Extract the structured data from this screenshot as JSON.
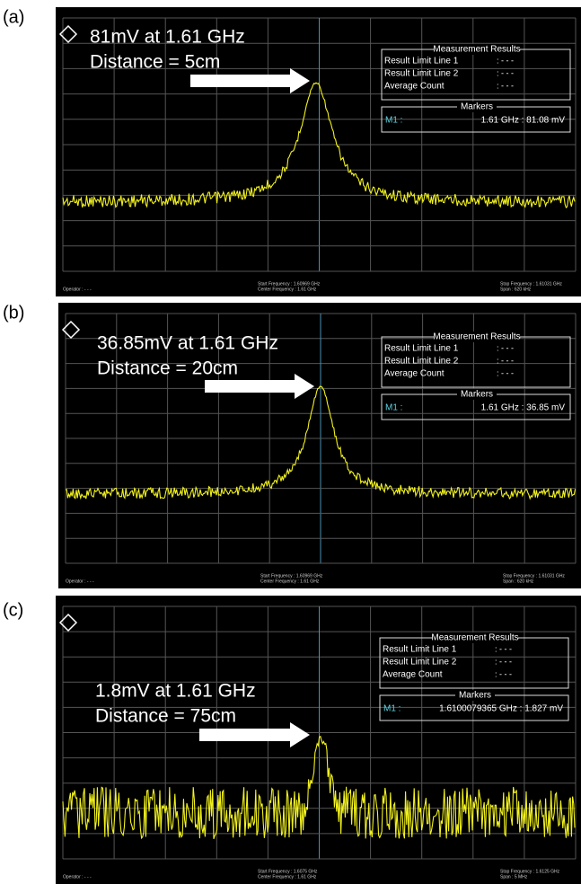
{
  "panels": [
    {
      "label": "(a)",
      "annotation": [
        "81mV at 1.61 GHz",
        "Distance = 5cm"
      ],
      "results": {
        "title": "Measurement Results",
        "rows": [
          [
            "Result Limit Line 1",
            ": - - -"
          ],
          [
            "Result Limit Line 2",
            ": - - -"
          ],
          [
            "Average Count",
            ": - - -"
          ]
        ]
      },
      "markers": {
        "title": "Markers",
        "id": "M1 :",
        "value": "1.61 GHz : 81.08 mV"
      },
      "footer": {
        "operator": "Operator : - - -",
        "start": "Start Frequency : 1.60969 GHz",
        "center": "Center Frequency : 1.61 GHz",
        "stop": "Stop Frequency : 1.61031 GHz",
        "span": "Span : 620 kHz"
      }
    },
    {
      "label": "(b)",
      "annotation": [
        "36.85mV at 1.61 GHz",
        "Distance = 20cm"
      ],
      "results": {
        "title": "Measurement Results",
        "rows": [
          [
            "Result Limit Line 1",
            ": - - -"
          ],
          [
            "Result Limit Line 2",
            ": - - -"
          ],
          [
            "Average Count",
            ": - - -"
          ]
        ]
      },
      "markers": {
        "title": "Markers",
        "id": "M1 :",
        "value": "1.61 GHz : 36.85 mV"
      },
      "footer": {
        "operator": "Operator : - - -",
        "start": "Start Frequency : 1.60969 GHz",
        "center": "Center Frequency : 1.61 GHz",
        "stop": "Stop Frequency : 1.61031 GHz",
        "span": "Span : 620 kHz"
      }
    },
    {
      "label": "(c)",
      "annotation": [
        "1.8mV at 1.61 GHz",
        "Distance = 75cm"
      ],
      "results": {
        "title": "Measurement Results",
        "rows": [
          [
            "Result Limit Line 1",
            ": - - -"
          ],
          [
            "Result Limit Line 2",
            ": - - -"
          ],
          [
            "Average Count",
            ": - - -"
          ]
        ]
      },
      "markers": {
        "title": "Markers",
        "id": "M1 :",
        "value": "1.6100079365 GHz : 1.827 mV"
      },
      "footer": {
        "operator": "Operator : - - -",
        "start": "Start Frequency : 1.6075 GHz",
        "center": "Center Frequency : 1.61 GHz",
        "stop": "Stop Frequency : 1.6125 GHz",
        "span": "Span : 5 MHz"
      }
    }
  ]
}
